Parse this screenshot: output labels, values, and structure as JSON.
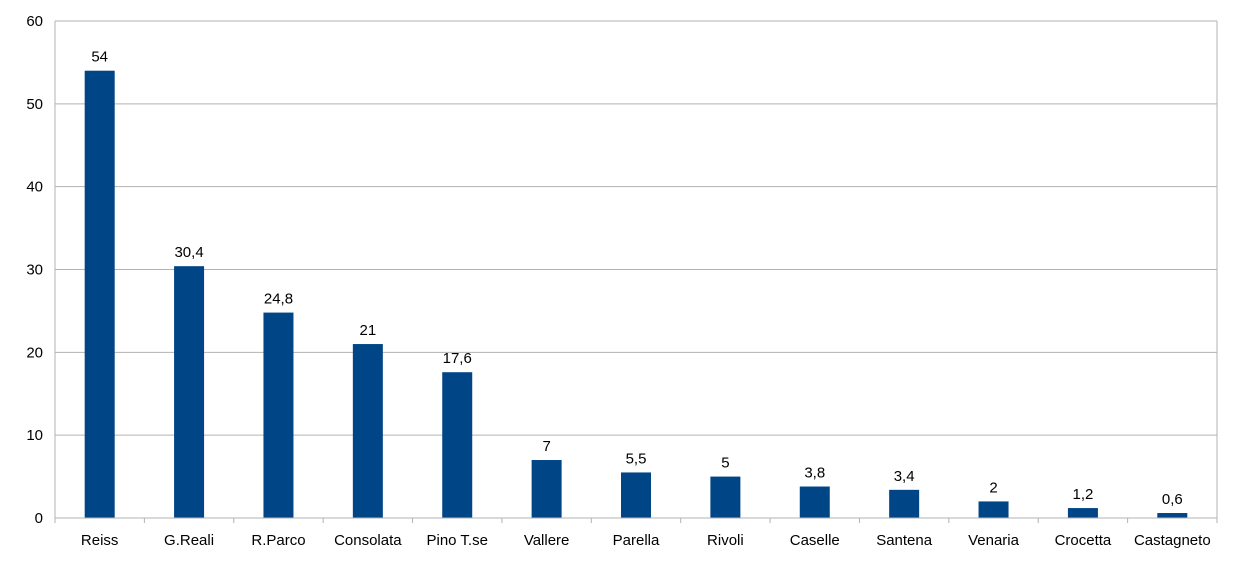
{
  "chart_data": {
    "type": "bar",
    "categories": [
      "Reiss",
      "G.Reali",
      "R.Parco",
      "Consolata",
      "Pino T.se",
      "Vallere",
      "Parella",
      "Rivoli",
      "Caselle",
      "Santena",
      "Venaria",
      "Crocetta",
      "Castagneto"
    ],
    "values": [
      54,
      30.4,
      24.8,
      21,
      17.6,
      7,
      5.5,
      5,
      3.8,
      3.4,
      2,
      1.2,
      0.6
    ],
    "value_labels": [
      "54",
      "30,4",
      "24,8",
      "21",
      "17,6",
      "7",
      "5,5",
      "5",
      "3,8",
      "3,4",
      "2",
      "1,2",
      "0,6"
    ],
    "title": "",
    "xlabel": "",
    "ylabel": "",
    "ylim": [
      0,
      60
    ],
    "yticks": [
      0,
      10,
      20,
      30,
      40,
      50,
      60
    ],
    "grid": true,
    "legend": "none",
    "colors": {
      "bar": "#004586",
      "grid": "#b3b3b3",
      "axis": "#b3b3b3"
    }
  }
}
